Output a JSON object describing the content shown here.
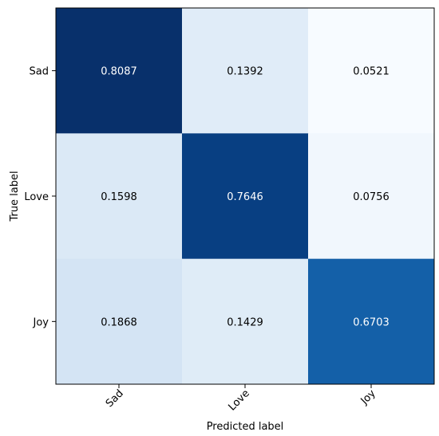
{
  "chart_data": {
    "type": "heatmap",
    "title": "",
    "xlabel": "Predicted label",
    "ylabel": "True label",
    "x_categories": [
      "Sad",
      "Love",
      "Joy"
    ],
    "y_categories": [
      "Sad",
      "Love",
      "Joy"
    ],
    "values": [
      [
        0.8087,
        0.1392,
        0.0521
      ],
      [
        0.1598,
        0.7646,
        0.0756
      ],
      [
        0.1868,
        0.1429,
        0.6703
      ]
    ],
    "value_labels": [
      [
        "0.8087",
        "0.1392",
        "0.0521"
      ],
      [
        "0.1598",
        "0.7646",
        "0.0756"
      ],
      [
        "0.1868",
        "0.1429",
        "0.6703"
      ]
    ],
    "colormap": "Blues",
    "x_tick_rotation": 45,
    "legend": "none",
    "grid": false
  }
}
